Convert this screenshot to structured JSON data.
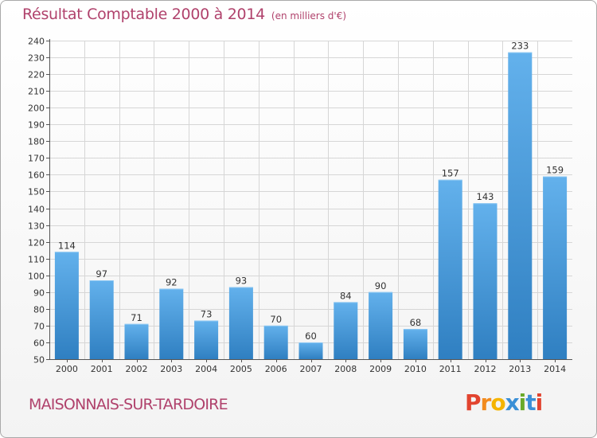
{
  "chart_data": {
    "type": "bar",
    "title": "Résultat Comptable 2000 à 2014",
    "subtitle": "(en milliers d'€)",
    "categories": [
      "2000",
      "2001",
      "2002",
      "2003",
      "2004",
      "2005",
      "2006",
      "2007",
      "2008",
      "2009",
      "2010",
      "2011",
      "2012",
      "2013",
      "2014"
    ],
    "values": [
      114,
      97,
      71,
      92,
      73,
      93,
      70,
      60,
      84,
      90,
      68,
      157,
      143,
      233,
      159
    ],
    "ylim": [
      50,
      240
    ],
    "yticks": [
      50,
      60,
      70,
      80,
      90,
      100,
      110,
      120,
      130,
      140,
      150,
      160,
      170,
      180,
      190,
      200,
      210,
      220,
      230,
      240
    ],
    "grid": true,
    "xlabel": "",
    "ylabel": ""
  },
  "footer": {
    "place": "MAISONNAIS-SUR-TARDOIRE",
    "logo_letters": [
      "P",
      "r",
      "o",
      "x",
      "i",
      "t",
      "i"
    ]
  },
  "colors": {
    "title": "#b0426c",
    "bar_light": "#63b1ec",
    "bar_dark": "#2f7fc1",
    "logo": [
      "#e2442f",
      "#f28b1e",
      "#f5b400",
      "#3a8fd6",
      "#6aaa2a",
      "#3a8fd6",
      "#e2442f"
    ]
  }
}
